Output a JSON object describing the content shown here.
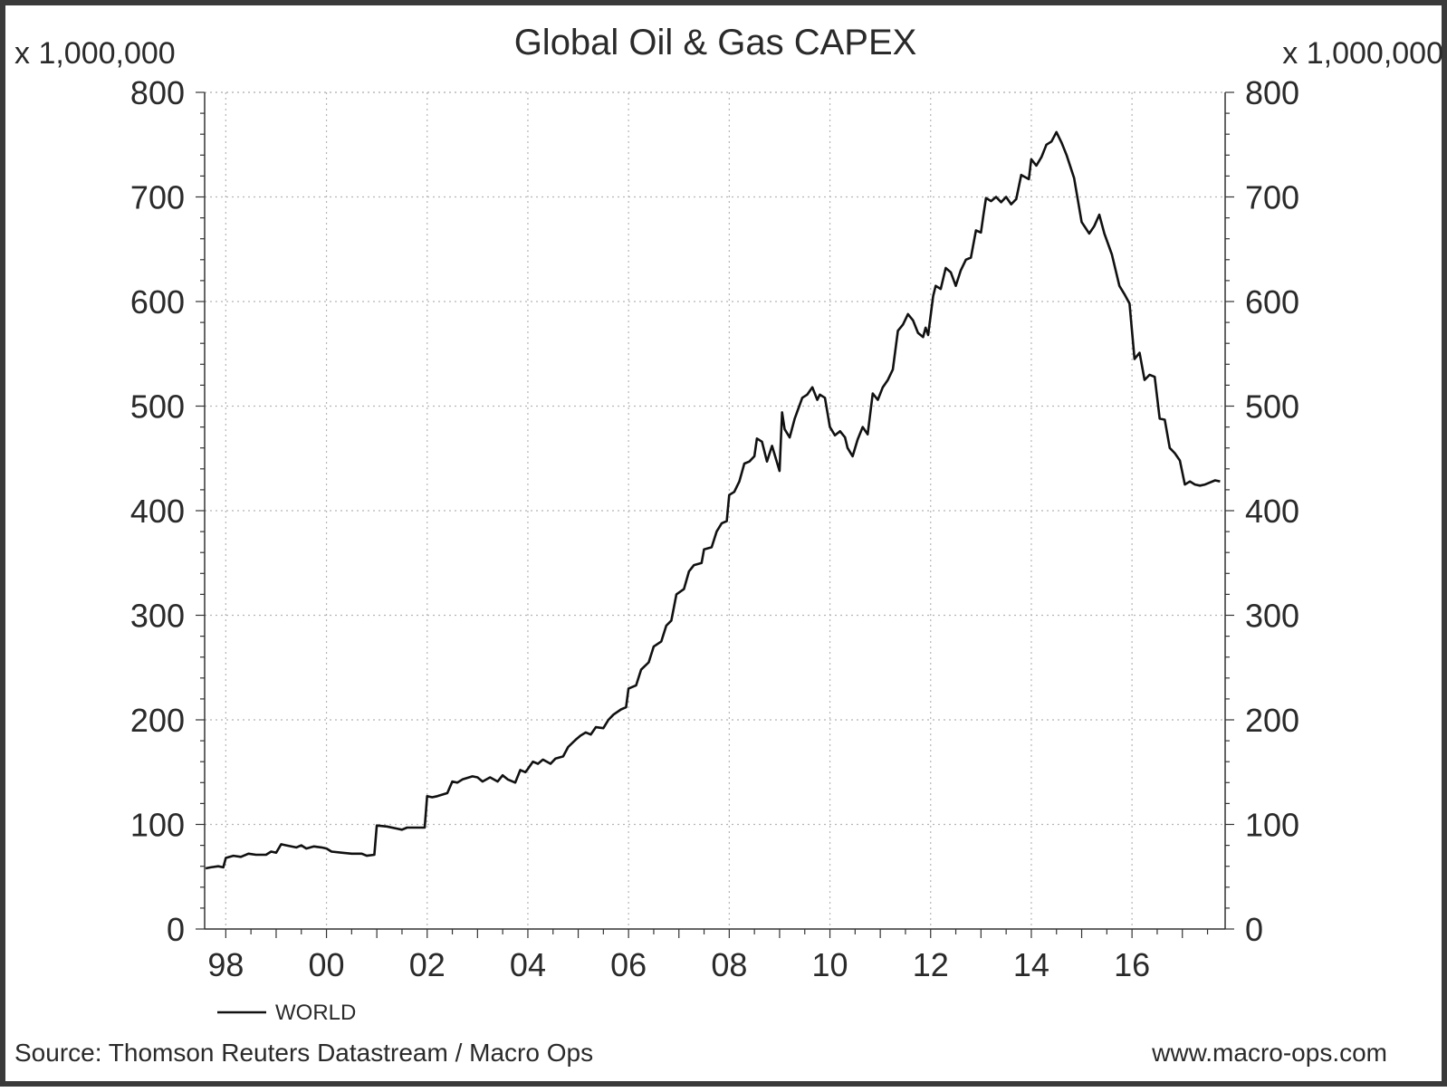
{
  "chart_data": {
    "type": "line",
    "title": "Global Oil & Gas CAPEX",
    "left_unit": "x 1,000,000",
    "right_unit": "x 1,000,000",
    "ylim": [
      0,
      800
    ],
    "y_ticks": [
      0,
      100,
      200,
      300,
      400,
      500,
      600,
      700,
      800
    ],
    "y_tick_labels": [
      "0",
      "100",
      "200",
      "300",
      "400",
      "500",
      "600",
      "700",
      "800"
    ],
    "xlim": [
      1997.58,
      2017.85
    ],
    "x_ticks": [
      1998,
      2000,
      2002,
      2004,
      2006,
      2008,
      2010,
      2012,
      2014,
      2016
    ],
    "x_tick_labels": [
      "98",
      "00",
      "02",
      "04",
      "06",
      "08",
      "10",
      "12",
      "14",
      "16"
    ],
    "grid": true,
    "legend_position": "bottom-left",
    "series": [
      {
        "name": "WORLD",
        "color": "#111111",
        "points": [
          [
            1997.6,
            58
          ],
          [
            1997.7,
            59
          ],
          [
            1997.85,
            60
          ],
          [
            1997.95,
            59
          ],
          [
            1998.0,
            68
          ],
          [
            1998.15,
            70
          ],
          [
            1998.3,
            69
          ],
          [
            1998.45,
            72
          ],
          [
            1998.6,
            71
          ],
          [
            1998.8,
            71
          ],
          [
            1998.9,
            74
          ],
          [
            1999.0,
            73
          ],
          [
            1999.1,
            81
          ],
          [
            1999.2,
            80
          ],
          [
            1999.4,
            78
          ],
          [
            1999.5,
            80
          ],
          [
            1999.6,
            77
          ],
          [
            1999.75,
            79
          ],
          [
            1999.9,
            78
          ],
          [
            2000.0,
            77
          ],
          [
            2000.1,
            74
          ],
          [
            2000.3,
            73
          ],
          [
            2000.5,
            72
          ],
          [
            2000.7,
            72
          ],
          [
            2000.8,
            70
          ],
          [
            2000.95,
            71
          ],
          [
            2001.0,
            99
          ],
          [
            2001.2,
            98
          ],
          [
            2001.4,
            96
          ],
          [
            2001.5,
            95
          ],
          [
            2001.6,
            97
          ],
          [
            2001.8,
            97
          ],
          [
            2001.95,
            97
          ],
          [
            2002.0,
            127
          ],
          [
            2002.1,
            126
          ],
          [
            2002.2,
            127
          ],
          [
            2002.4,
            130
          ],
          [
            2002.5,
            141
          ],
          [
            2002.6,
            140
          ],
          [
            2002.7,
            143
          ],
          [
            2002.9,
            146
          ],
          [
            2003.0,
            145
          ],
          [
            2003.1,
            141
          ],
          [
            2003.25,
            145
          ],
          [
            2003.4,
            141
          ],
          [
            2003.5,
            147
          ],
          [
            2003.6,
            143
          ],
          [
            2003.75,
            140
          ],
          [
            2003.85,
            152
          ],
          [
            2003.95,
            150
          ],
          [
            2004.0,
            153
          ],
          [
            2004.1,
            160
          ],
          [
            2004.2,
            158
          ],
          [
            2004.3,
            162
          ],
          [
            2004.45,
            158
          ],
          [
            2004.55,
            163
          ],
          [
            2004.7,
            165
          ],
          [
            2004.8,
            174
          ],
          [
            2004.95,
            181
          ],
          [
            2005.05,
            185
          ],
          [
            2005.15,
            188
          ],
          [
            2005.25,
            186
          ],
          [
            2005.35,
            193
          ],
          [
            2005.5,
            192
          ],
          [
            2005.6,
            200
          ],
          [
            2005.7,
            205
          ],
          [
            2005.85,
            210
          ],
          [
            2005.95,
            212
          ],
          [
            2006.0,
            230
          ],
          [
            2006.15,
            233
          ],
          [
            2006.25,
            248
          ],
          [
            2006.4,
            255
          ],
          [
            2006.5,
            270
          ],
          [
            2006.65,
            275
          ],
          [
            2006.75,
            290
          ],
          [
            2006.85,
            295
          ],
          [
            2006.95,
            320
          ],
          [
            2007.1,
            325
          ],
          [
            2007.2,
            342
          ],
          [
            2007.3,
            348
          ],
          [
            2007.45,
            350
          ],
          [
            2007.5,
            363
          ],
          [
            2007.65,
            365
          ],
          [
            2007.75,
            380
          ],
          [
            2007.85,
            388
          ],
          [
            2007.95,
            390
          ],
          [
            2008.0,
            415
          ],
          [
            2008.1,
            418
          ],
          [
            2008.2,
            428
          ],
          [
            2008.3,
            445
          ],
          [
            2008.4,
            447
          ],
          [
            2008.5,
            452
          ],
          [
            2008.55,
            469
          ],
          [
            2008.65,
            466
          ],
          [
            2008.75,
            447
          ],
          [
            2008.85,
            462
          ],
          [
            2009.0,
            438
          ],
          [
            2009.05,
            494
          ],
          [
            2009.1,
            478
          ],
          [
            2009.2,
            470
          ],
          [
            2009.3,
            488
          ],
          [
            2009.45,
            508
          ],
          [
            2009.55,
            511
          ],
          [
            2009.65,
            518
          ],
          [
            2009.75,
            506
          ],
          [
            2009.8,
            511
          ],
          [
            2009.9,
            508
          ],
          [
            2010.0,
            480
          ],
          [
            2010.1,
            472
          ],
          [
            2010.2,
            476
          ],
          [
            2010.3,
            470
          ],
          [
            2010.35,
            460
          ],
          [
            2010.45,
            452
          ],
          [
            2010.55,
            468
          ],
          [
            2010.65,
            480
          ],
          [
            2010.75,
            473
          ],
          [
            2010.85,
            512
          ],
          [
            2010.95,
            506
          ],
          [
            2011.05,
            518
          ],
          [
            2011.15,
            525
          ],
          [
            2011.25,
            535
          ],
          [
            2011.35,
            572
          ],
          [
            2011.45,
            578
          ],
          [
            2011.55,
            588
          ],
          [
            2011.65,
            582
          ],
          [
            2011.75,
            570
          ],
          [
            2011.85,
            566
          ],
          [
            2011.9,
            575
          ],
          [
            2011.95,
            568
          ],
          [
            2012.05,
            605
          ],
          [
            2012.1,
            615
          ],
          [
            2012.2,
            612
          ],
          [
            2012.3,
            632
          ],
          [
            2012.4,
            628
          ],
          [
            2012.5,
            615
          ],
          [
            2012.6,
            630
          ],
          [
            2012.7,
            640
          ],
          [
            2012.8,
            642
          ],
          [
            2012.9,
            668
          ],
          [
            2013.0,
            666
          ],
          [
            2013.05,
            683
          ],
          [
            2013.1,
            699
          ],
          [
            2013.2,
            696
          ],
          [
            2013.3,
            700
          ],
          [
            2013.4,
            695
          ],
          [
            2013.5,
            700
          ],
          [
            2013.6,
            693
          ],
          [
            2013.7,
            698
          ],
          [
            2013.8,
            721
          ],
          [
            2013.95,
            717
          ],
          [
            2014.0,
            736
          ],
          [
            2014.1,
            730
          ],
          [
            2014.2,
            738
          ],
          [
            2014.3,
            750
          ],
          [
            2014.4,
            753
          ],
          [
            2014.5,
            762
          ],
          [
            2014.6,
            752
          ],
          [
            2014.7,
            740
          ],
          [
            2014.85,
            718
          ],
          [
            2015.0,
            676
          ],
          [
            2015.15,
            665
          ],
          [
            2015.25,
            672
          ],
          [
            2015.35,
            683
          ],
          [
            2015.45,
            665
          ],
          [
            2015.6,
            645
          ],
          [
            2015.75,
            615
          ],
          [
            2015.85,
            607
          ],
          [
            2015.95,
            598
          ],
          [
            2016.05,
            545
          ],
          [
            2016.15,
            551
          ],
          [
            2016.25,
            525
          ],
          [
            2016.35,
            530
          ],
          [
            2016.45,
            528
          ],
          [
            2016.55,
            488
          ],
          [
            2016.65,
            487
          ],
          [
            2016.75,
            460
          ],
          [
            2016.85,
            455
          ],
          [
            2016.95,
            448
          ],
          [
            2017.05,
            425
          ],
          [
            2017.15,
            428
          ],
          [
            2017.25,
            425
          ],
          [
            2017.35,
            424
          ],
          [
            2017.45,
            425
          ],
          [
            2017.55,
            427
          ],
          [
            2017.65,
            429
          ],
          [
            2017.75,
            428
          ]
        ]
      }
    ],
    "legend": [
      {
        "label": "WORLD",
        "color": "#111111"
      }
    ],
    "source_text": "Source: Thomson Reuters Datastream / Macro Ops",
    "website_text": "www.macro-ops.com"
  }
}
